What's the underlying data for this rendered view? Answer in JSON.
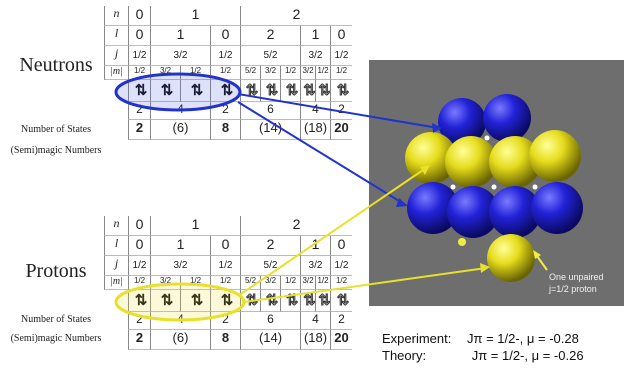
{
  "neutrons": {
    "title": "Neutrons",
    "n_label": "n",
    "l_label": "l",
    "j_label": "j",
    "m_label": "|m|",
    "n_values": [
      "0",
      "1",
      "2"
    ],
    "l_values": [
      "0",
      "1",
      "0",
      "2",
      "1",
      "0"
    ],
    "j_values": [
      "1/2",
      "3/2",
      "1/2",
      "5/2",
      "3/2",
      "1/2"
    ],
    "m_values": [
      "1/2",
      "3/2",
      "1/2",
      "1/2",
      "5/2",
      "3/2",
      "1/2",
      "3/2",
      "1/2",
      "1/2"
    ],
    "states_label": "Number of States",
    "states": [
      "2",
      "4",
      "2",
      "6",
      "4",
      "2"
    ],
    "magic_label": "(Semi)magic Numbers",
    "magic": [
      "2",
      "(6)",
      "8",
      "(14)",
      "(18)",
      "20"
    ]
  },
  "protons": {
    "title": "Protons",
    "n_label": "n",
    "l_label": "l",
    "j_label": "j",
    "m_label": "|m|",
    "n_values": [
      "0",
      "1",
      "2"
    ],
    "l_values": [
      "0",
      "1",
      "0",
      "2",
      "1",
      "0"
    ],
    "j_values": [
      "1/2",
      "3/2",
      "1/2",
      "5/2",
      "3/2",
      "1/2"
    ],
    "m_values": [
      "1/2",
      "3/2",
      "1/2",
      "1/2",
      "5/2",
      "3/2",
      "1/2",
      "3/2",
      "1/2",
      "1/2"
    ],
    "states_label": "Number of States",
    "states": [
      "2",
      "4",
      "2",
      "6",
      "4",
      "2"
    ],
    "magic_label": "(Semi)magic Numbers",
    "magic": [
      "2",
      "(6)",
      "8",
      "(14)",
      "(18)",
      "20"
    ]
  },
  "arrows": {
    "filled": "⇅",
    "outline": "⇅"
  },
  "nucleus": {
    "annotation_line1": "One unpaired",
    "annotation_line2": "j=1/2 proton",
    "neutron_color": "#1f1fc8",
    "proton_color": "#e8e02a",
    "background_color": "#6e6e6e"
  },
  "results": {
    "experiment_label": "Experiment:",
    "experiment_value": "Jπ = 1/2-, μ = -0.28",
    "theory_label": "Theory:",
    "theory_value": "Jπ = 1/2-, μ = -0.26"
  },
  "highlight_colors": {
    "neutron": "#2233cc",
    "proton": "#e8e02a"
  }
}
